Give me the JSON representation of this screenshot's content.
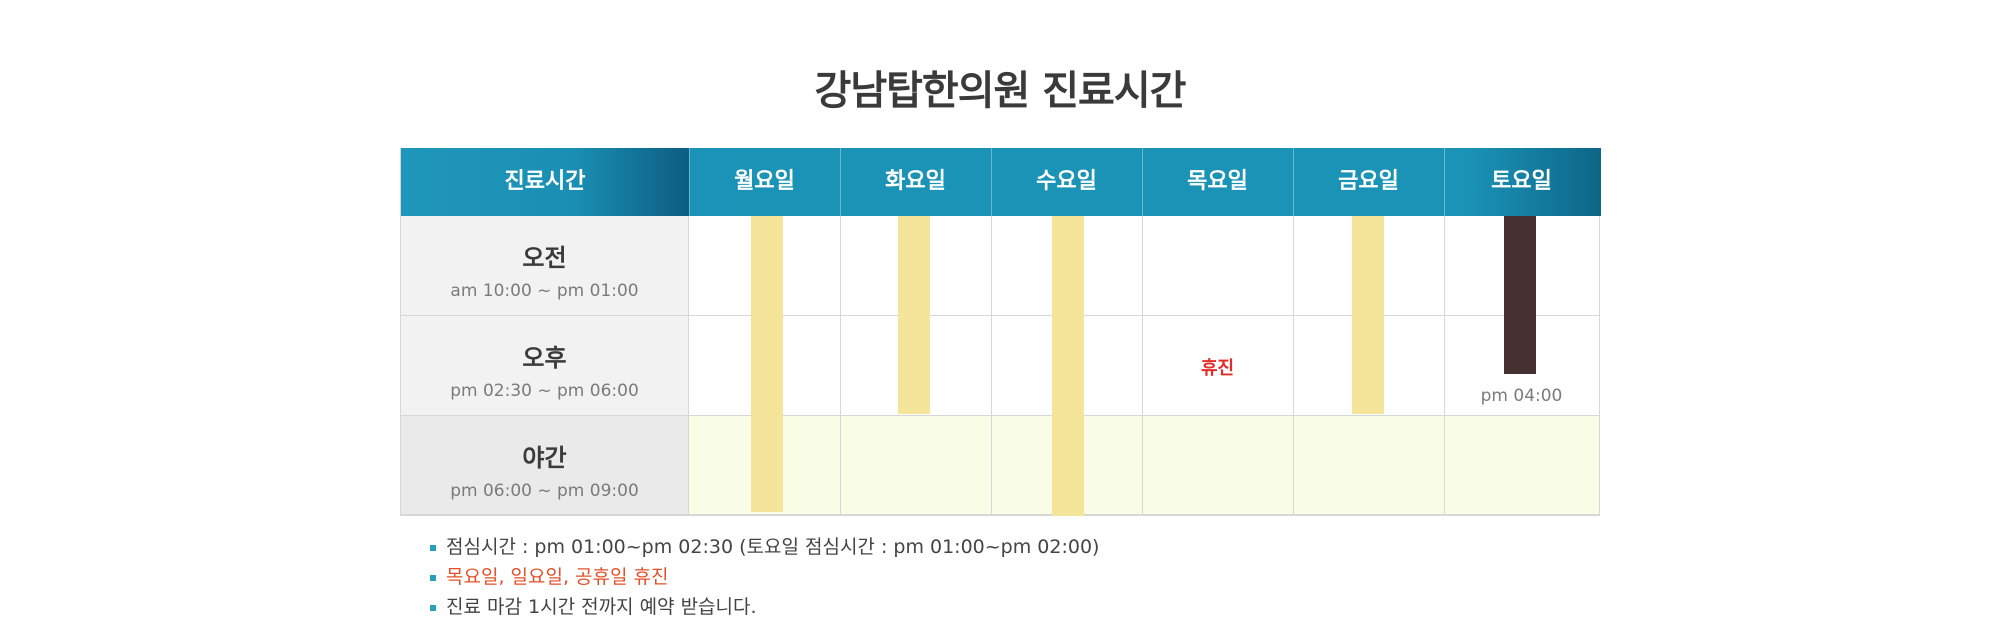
{
  "title": "강남탑한의원 진료시간",
  "header": {
    "label": "진료시간",
    "days": [
      "월요일",
      "화요일",
      "수요일",
      "목요일",
      "금요일",
      "토요일"
    ]
  },
  "rows": [
    {
      "name": "오전",
      "time": "am 10:00 ~ pm 01:00"
    },
    {
      "name": "오후",
      "time": "pm 02:30 ~ pm  06:00"
    },
    {
      "name": "야간",
      "time": "pm 06:00 ~ pm 09:00"
    }
  ],
  "thursday_closed": "휴진",
  "saturday_end": "pm  04:00",
  "notes": [
    "점심시간 : pm 01:00~pm 02:30 (토요일 점심시간 : pm 01:00~pm 02:00)",
    "목요일, 일요일, 공휴일 휴진",
    "진료 마감 1시간 전까지 예약 받습니다."
  ],
  "colors": {
    "header_blue": "#1a93b6",
    "bar_yellow": "#f5e59b",
    "bar_brown": "#473031",
    "night_bg": "#fafde6",
    "closed_red": "#e32c2c",
    "note_red": "#e4502a"
  }
}
